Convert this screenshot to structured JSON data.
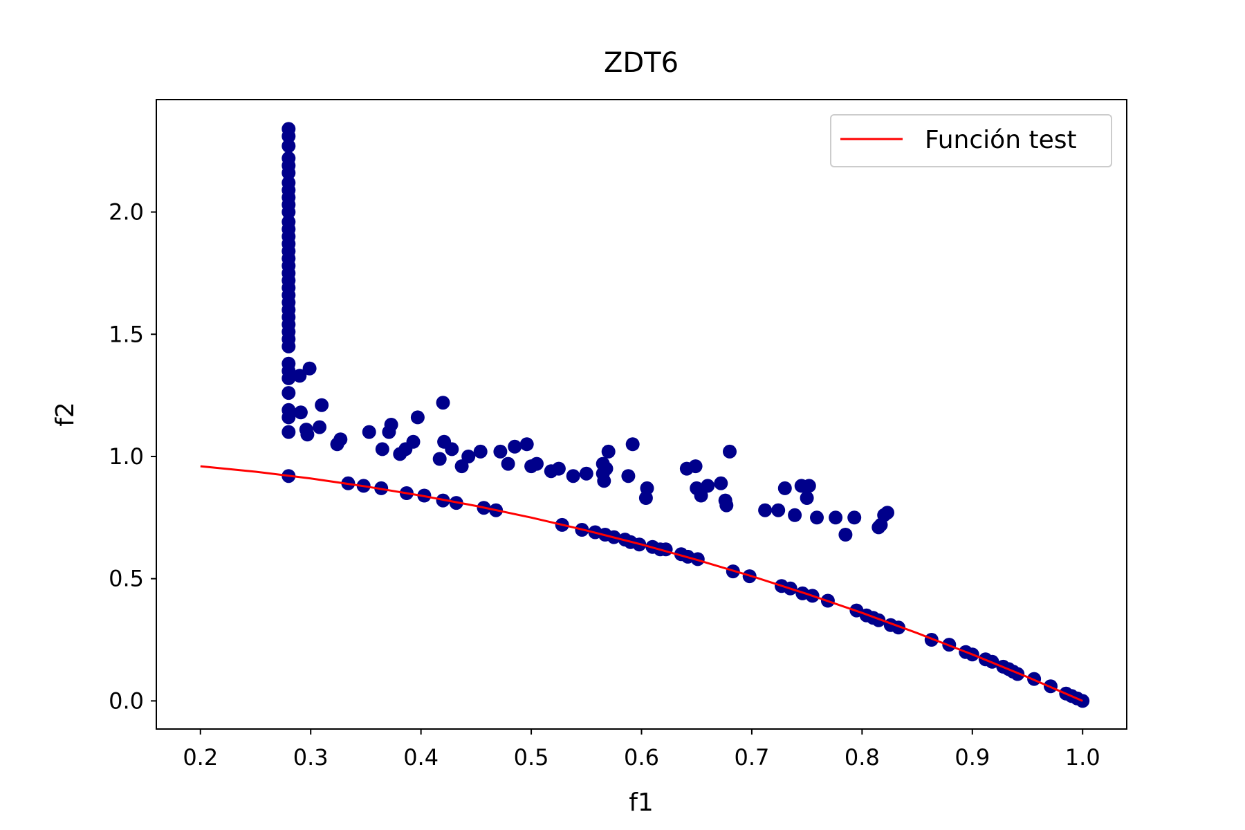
{
  "chart_data": {
    "type": "scatter",
    "title": "ZDT6",
    "xlabel": "f1",
    "ylabel": "f2",
    "xlim": [
      0.16,
      1.04
    ],
    "ylim": [
      -0.115,
      2.46
    ],
    "xticks": [
      0.2,
      0.3,
      0.4,
      0.5,
      0.6,
      0.7,
      0.8,
      0.9,
      1.0
    ],
    "xtick_labels": [
      "0.2",
      "0.3",
      "0.4",
      "0.5",
      "0.6",
      "0.7",
      "0.8",
      "0.9",
      "1.0"
    ],
    "yticks": [
      0.0,
      0.5,
      1.0,
      1.5,
      2.0
    ],
    "ytick_labels": [
      "0.0",
      "0.5",
      "1.0",
      "1.5",
      "2.0"
    ],
    "grid": false,
    "legend": {
      "position": "upper-right",
      "entries": [
        "Función test"
      ]
    },
    "series": [
      {
        "name": "Función test",
        "kind": "line",
        "color": "#ff0000",
        "function": "1 - x^2",
        "x": [
          0.2,
          0.25,
          0.3,
          0.35,
          0.4,
          0.45,
          0.5,
          0.55,
          0.6,
          0.65,
          0.7,
          0.75,
          0.8,
          0.85,
          0.9,
          0.95,
          1.0
        ],
        "y": [
          0.96,
          0.9375,
          0.91,
          0.8775,
          0.84,
          0.7975,
          0.75,
          0.6975,
          0.64,
          0.5775,
          0.51,
          0.4375,
          0.36,
          0.2775,
          0.19,
          0.0975,
          0.0
        ]
      },
      {
        "kind": "scatter",
        "color": "#00008b",
        "points": [
          [
            0.28,
            2.34
          ],
          [
            0.28,
            2.31
          ],
          [
            0.28,
            2.27
          ],
          [
            0.28,
            2.22
          ],
          [
            0.28,
            2.19
          ],
          [
            0.28,
            2.16
          ],
          [
            0.28,
            2.12
          ],
          [
            0.28,
            2.09
          ],
          [
            0.28,
            2.06
          ],
          [
            0.28,
            2.03
          ],
          [
            0.28,
            2.0
          ],
          [
            0.28,
            1.96
          ],
          [
            0.28,
            1.93
          ],
          [
            0.28,
            1.9
          ],
          [
            0.28,
            1.87
          ],
          [
            0.28,
            1.84
          ],
          [
            0.28,
            1.81
          ],
          [
            0.28,
            1.78
          ],
          [
            0.28,
            1.75
          ],
          [
            0.28,
            1.72
          ],
          [
            0.28,
            1.69
          ],
          [
            0.28,
            1.66
          ],
          [
            0.28,
            1.63
          ],
          [
            0.28,
            1.6
          ],
          [
            0.28,
            1.57
          ],
          [
            0.28,
            1.54
          ],
          [
            0.28,
            1.51
          ],
          [
            0.28,
            1.48
          ],
          [
            0.28,
            1.45
          ],
          [
            0.28,
            1.38
          ],
          [
            0.28,
            1.35
          ],
          [
            0.28,
            1.32
          ],
          [
            0.28,
            1.26
          ],
          [
            0.28,
            1.19
          ],
          [
            0.28,
            1.16
          ],
          [
            0.28,
            1.1
          ],
          [
            0.28,
            0.92
          ],
          [
            0.29,
            1.33
          ],
          [
            0.291,
            1.18
          ],
          [
            0.296,
            1.11
          ],
          [
            0.297,
            1.09
          ],
          [
            0.299,
            1.36
          ],
          [
            0.308,
            1.12
          ],
          [
            0.31,
            1.21
          ],
          [
            0.324,
            1.05
          ],
          [
            0.327,
            1.07
          ],
          [
            0.334,
            0.89
          ],
          [
            0.348,
            0.88
          ],
          [
            0.353,
            1.1
          ],
          [
            0.364,
            0.87
          ],
          [
            0.365,
            1.03
          ],
          [
            0.371,
            1.1
          ],
          [
            0.373,
            1.13
          ],
          [
            0.381,
            1.01
          ],
          [
            0.386,
            1.03
          ],
          [
            0.387,
            0.85
          ],
          [
            0.393,
            1.06
          ],
          [
            0.397,
            1.16
          ],
          [
            0.403,
            0.84
          ],
          [
            0.417,
            0.99
          ],
          [
            0.42,
            1.22
          ],
          [
            0.42,
            0.82
          ],
          [
            0.421,
            1.06
          ],
          [
            0.428,
            1.03
          ],
          [
            0.432,
            0.81
          ],
          [
            0.437,
            0.96
          ],
          [
            0.443,
            1.0
          ],
          [
            0.454,
            1.02
          ],
          [
            0.457,
            0.79
          ],
          [
            0.468,
            0.78
          ],
          [
            0.472,
            1.02
          ],
          [
            0.479,
            0.97
          ],
          [
            0.485,
            1.04
          ],
          [
            0.496,
            1.05
          ],
          [
            0.5,
            0.96
          ],
          [
            0.505,
            0.97
          ],
          [
            0.518,
            0.94
          ],
          [
            0.525,
            0.95
          ],
          [
            0.528,
            0.72
          ],
          [
            0.538,
            0.92
          ],
          [
            0.546,
            0.7
          ],
          [
            0.55,
            0.93
          ],
          [
            0.558,
            0.69
          ],
          [
            0.565,
            0.97
          ],
          [
            0.565,
            0.93
          ],
          [
            0.566,
            0.9
          ],
          [
            0.567,
            0.68
          ],
          [
            0.568,
            0.95
          ],
          [
            0.57,
            1.02
          ],
          [
            0.575,
            0.67
          ],
          [
            0.585,
            0.66
          ],
          [
            0.588,
            0.92
          ],
          [
            0.59,
            0.65
          ],
          [
            0.592,
            1.05
          ],
          [
            0.598,
            0.64
          ],
          [
            0.604,
            0.83
          ],
          [
            0.605,
            0.87
          ],
          [
            0.61,
            0.63
          ],
          [
            0.617,
            0.62
          ],
          [
            0.622,
            0.62
          ],
          [
            0.636,
            0.6
          ],
          [
            0.641,
            0.95
          ],
          [
            0.642,
            0.59
          ],
          [
            0.649,
            0.96
          ],
          [
            0.65,
            0.87
          ],
          [
            0.651,
            0.58
          ],
          [
            0.654,
            0.84
          ],
          [
            0.66,
            0.88
          ],
          [
            0.672,
            0.89
          ],
          [
            0.676,
            0.82
          ],
          [
            0.677,
            0.8
          ],
          [
            0.68,
            1.02
          ],
          [
            0.683,
            0.53
          ],
          [
            0.698,
            0.51
          ],
          [
            0.712,
            0.78
          ],
          [
            0.724,
            0.78
          ],
          [
            0.727,
            0.47
          ],
          [
            0.73,
            0.87
          ],
          [
            0.735,
            0.46
          ],
          [
            0.739,
            0.76
          ],
          [
            0.745,
            0.88
          ],
          [
            0.746,
            0.44
          ],
          [
            0.75,
            0.83
          ],
          [
            0.752,
            0.88
          ],
          [
            0.755,
            0.43
          ],
          [
            0.759,
            0.75
          ],
          [
            0.769,
            0.41
          ],
          [
            0.776,
            0.75
          ],
          [
            0.785,
            0.68
          ],
          [
            0.793,
            0.75
          ],
          [
            0.795,
            0.37
          ],
          [
            0.804,
            0.35
          ],
          [
            0.81,
            0.34
          ],
          [
            0.815,
            0.33
          ],
          [
            0.815,
            0.71
          ],
          [
            0.817,
            0.72
          ],
          [
            0.82,
            0.76
          ],
          [
            0.823,
            0.77
          ],
          [
            0.826,
            0.31
          ],
          [
            0.833,
            0.3
          ],
          [
            0.863,
            0.25
          ],
          [
            0.879,
            0.23
          ],
          [
            0.894,
            0.2
          ],
          [
            0.9,
            0.19
          ],
          [
            0.912,
            0.17
          ],
          [
            0.918,
            0.16
          ],
          [
            0.928,
            0.14
          ],
          [
            0.933,
            0.13
          ],
          [
            0.937,
            0.12
          ],
          [
            0.941,
            0.11
          ],
          [
            0.956,
            0.09
          ],
          [
            0.971,
            0.06
          ],
          [
            0.985,
            0.03
          ],
          [
            0.99,
            0.02
          ],
          [
            0.995,
            0.01
          ],
          [
            1.0,
            0.0
          ]
        ]
      }
    ]
  }
}
